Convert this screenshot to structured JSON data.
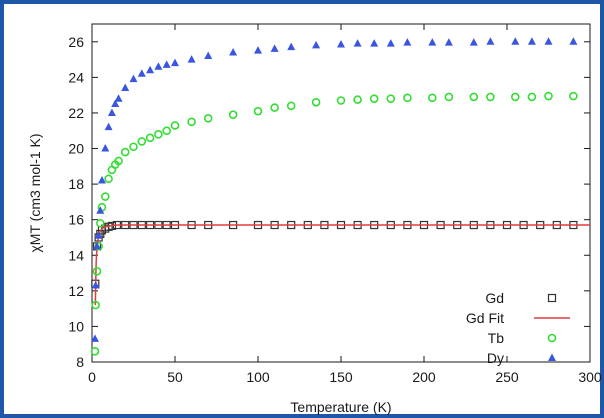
{
  "chart_data": {
    "type": "scatter",
    "xlabel": "Temperature (K)",
    "ylabel": "χMT (cm3 mol-1 K)",
    "xlim": [
      0,
      300
    ],
    "ylim": [
      8,
      27
    ],
    "xticks": [
      0,
      50,
      100,
      150,
      200,
      250,
      300
    ],
    "yticks": [
      8,
      10,
      12,
      14,
      16,
      18,
      20,
      22,
      24,
      26
    ],
    "legend_position": "bottom-right",
    "grid": false,
    "series": [
      {
        "name": "Gd",
        "marker": "square-open",
        "color": "#333333",
        "x": [
          2,
          3,
          4,
          5,
          6,
          8,
          10,
          12,
          15,
          20,
          25,
          30,
          35,
          40,
          45,
          50,
          60,
          70,
          85,
          100,
          110,
          120,
          130,
          140,
          150,
          160,
          170,
          180,
          190,
          200,
          210,
          220,
          230,
          240,
          250,
          260,
          270,
          280,
          290
        ],
        "y": [
          12.4,
          14.5,
          15.0,
          15.2,
          15.4,
          15.5,
          15.6,
          15.65,
          15.7,
          15.7,
          15.7,
          15.7,
          15.7,
          15.7,
          15.7,
          15.7,
          15.7,
          15.7,
          15.7,
          15.7,
          15.7,
          15.7,
          15.7,
          15.7,
          15.7,
          15.7,
          15.7,
          15.7,
          15.7,
          15.7,
          15.7,
          15.7,
          15.7,
          15.7,
          15.7,
          15.7,
          15.7,
          15.7,
          15.7
        ]
      },
      {
        "name": "Gd Fit",
        "style": "line",
        "color": "#e03c3c",
        "x": [
          2,
          2.5,
          3,
          4,
          5,
          6,
          8,
          10,
          13,
          16,
          20,
          30,
          50,
          100,
          150,
          200,
          250,
          300
        ],
        "y": [
          11.2,
          13.6,
          14.5,
          15.1,
          15.35,
          15.5,
          15.6,
          15.65,
          15.68,
          15.7,
          15.7,
          15.7,
          15.7,
          15.7,
          15.7,
          15.7,
          15.7,
          15.7
        ]
      },
      {
        "name": "Tb",
        "marker": "circle-open",
        "color": "#33dd33",
        "x": [
          1.8,
          2.2,
          3,
          4,
          5,
          6,
          8,
          10,
          12,
          14,
          16,
          20,
          25,
          30,
          35,
          40,
          45,
          50,
          60,
          70,
          85,
          100,
          110,
          120,
          135,
          150,
          160,
          170,
          180,
          190,
          205,
          215,
          230,
          240,
          255,
          265,
          275,
          290
        ],
        "y": [
          8.6,
          11.2,
          13.1,
          14.5,
          15.8,
          16.7,
          17.3,
          18.3,
          18.8,
          19.1,
          19.3,
          19.8,
          20.1,
          20.4,
          20.6,
          20.8,
          21.0,
          21.3,
          21.5,
          21.7,
          21.9,
          22.1,
          22.3,
          22.4,
          22.6,
          22.7,
          22.75,
          22.8,
          22.8,
          22.85,
          22.85,
          22.9,
          22.9,
          22.9,
          22.9,
          22.9,
          22.95,
          22.95
        ]
      },
      {
        "name": "Dy",
        "marker": "triangle",
        "color": "#3a56e0",
        "x": [
          1.8,
          2.2,
          3,
          4,
          5,
          6,
          8,
          10,
          12,
          14,
          16,
          20,
          25,
          30,
          35,
          40,
          45,
          50,
          60,
          70,
          85,
          100,
          110,
          120,
          135,
          150,
          160,
          170,
          180,
          190,
          205,
          215,
          230,
          240,
          255,
          265,
          275,
          290
        ],
        "y": [
          9.3,
          12.3,
          14.5,
          15.1,
          16.5,
          18.2,
          20.0,
          21.2,
          22.0,
          22.5,
          22.8,
          23.4,
          23.9,
          24.2,
          24.4,
          24.6,
          24.7,
          24.8,
          25.0,
          25.2,
          25.4,
          25.5,
          25.6,
          25.7,
          25.8,
          25.85,
          25.9,
          25.9,
          25.9,
          25.95,
          25.95,
          25.95,
          25.95,
          26.0,
          26.0,
          26.0,
          26.0,
          26.0
        ]
      }
    ]
  }
}
